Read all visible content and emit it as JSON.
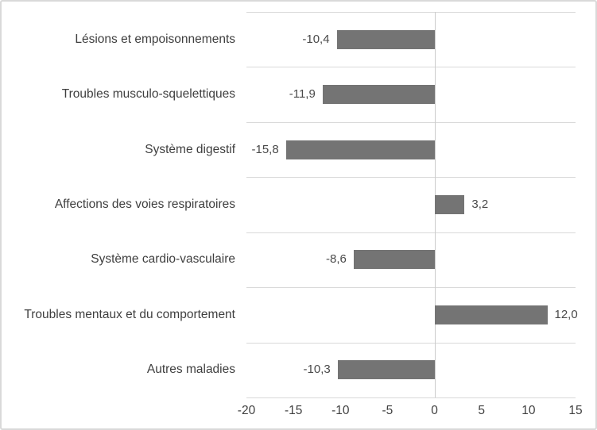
{
  "chart_data": {
    "type": "bar",
    "orientation": "horizontal",
    "title": "",
    "xlabel": "",
    "ylabel": "",
    "categories": [
      "Lésions et empoisonnements",
      "Troubles musculo-squelettiques",
      "Système digestif",
      "Affections des voies respiratoires",
      "Système cardio-vasculaire",
      "Troubles mentaux et du comportement",
      "Autres maladies"
    ],
    "values": [
      -10.4,
      -11.9,
      -15.8,
      3.2,
      -8.6,
      12.0,
      -10.3
    ],
    "value_labels": [
      "-10,4",
      "-11,9",
      "-15,8",
      "3,2",
      "-8,6",
      "12,0",
      "-10,3"
    ],
    "xlim": [
      -20,
      15
    ],
    "xticks": [
      -20,
      -15,
      -10,
      -5,
      0,
      5,
      10,
      15
    ],
    "xtick_labels": [
      "-20",
      "-15",
      "-10",
      "-5",
      "0",
      "5",
      "10",
      "15"
    ],
    "grid": "horizontal-row-separators-on",
    "vertical_gridlines": "zero-axis-only",
    "legend": "none",
    "colors": {
      "bar": "#747474",
      "gridline": "#d9d9d9",
      "zero_line": "#cccccc",
      "label_text": "#3f3f3f",
      "value_text": "#4a4a4a",
      "background": "#ffffff",
      "border": "#d9d9d9"
    }
  }
}
